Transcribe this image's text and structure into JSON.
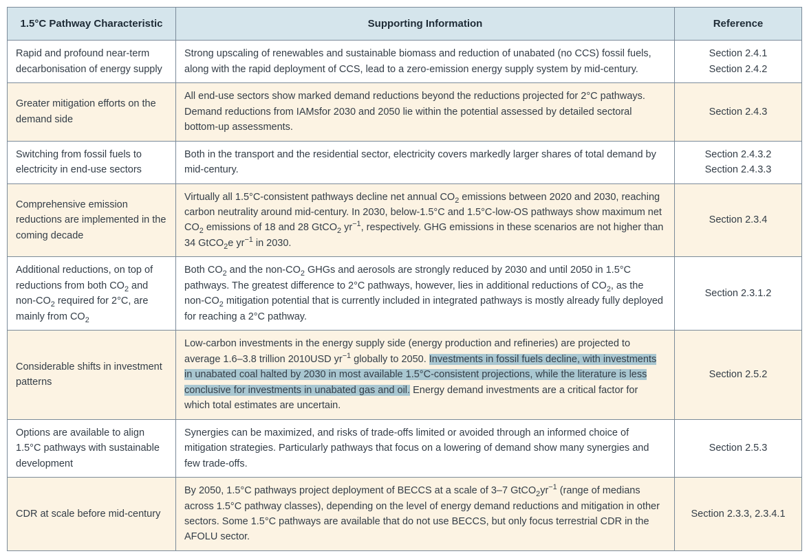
{
  "table": {
    "header_bg": "#d5e5ec",
    "alt_row_bg": "#fcf3e3",
    "border_color": "#7a8a99",
    "text_color": "#333d47",
    "highlight_bg": "#a9c7d1",
    "columns": {
      "characteristic": "1.5°C Pathway Characteristic",
      "supporting_info": "Supporting Information",
      "reference": "Reference"
    },
    "rows": [
      {
        "alt": false,
        "characteristic": "Rapid and profound near-term decarbonisation of energy supply",
        "info_html": "Strong upscaling of renewables and sustainable biomass and reduction of unabated (no CCS) fossil fuels, along with the rapid deployment of CCS, lead to a zero-emission energy supply system by mid-century.",
        "reference_html": "Section 2.4.1<br>Section 2.4.2"
      },
      {
        "alt": true,
        "characteristic": "Greater mitigation efforts on the demand side",
        "info_html": "All end-use sectors show marked demand reductions beyond the reductions projected for 2°C pathways. Demand reductions from IAMsfor 2030 and 2050 lie within the potential assessed by detailed sectoral bottom-up assessments.",
        "reference_html": "Section 2.4.3"
      },
      {
        "alt": false,
        "characteristic": "Switching from fossil fuels to electricity in end-use sectors",
        "info_html": "Both in the transport and the residential sector, electricity covers markedly larger shares of total demand by mid-century.",
        "reference_html": "Section 2.4.3.2<br>Section 2.4.3.3"
      },
      {
        "alt": true,
        "characteristic": "Comprehensive emission reductions are implemented in the coming decade",
        "info_html": "Virtually all 1.5°C-consistent pathways decline net annual CO<sub>2</sub> emissions between 2020 and 2030, reaching carbon neutrality around mid-century. In 2030, below-1.5°C and 1.5°C-low-OS pathways show maximum net CO<sub>2</sub> emissions of 18 and 28 GtCO<sub>2</sub> yr<sup>−1</sup>, respectively. GHG emissions in these scenarios are not higher than 34 GtCO<sub>2</sub>e yr<sup>−1</sup> in 2030.",
        "reference_html": "Section 2.3.4"
      },
      {
        "alt": false,
        "characteristic_html": "Additional reductions, on top of reductions from both CO<sub>2</sub> and non-CO<sub>2</sub> required for 2°C, are mainly from CO<sub>2</sub>",
        "info_html": "Both CO<sub>2</sub> and the non-CO<sub>2</sub> GHGs and aerosols are strongly reduced by 2030 and until 2050 in 1.5°C pathways. The greatest difference to 2°C pathways, however, lies in additional reductions of CO<sub>2</sub>, as the non-CO<sub>2</sub> mitigation potential that is currently included in integrated pathways is mostly already fully deployed for reaching a 2°C pathway.",
        "reference_html": "Section 2.3.1.2"
      },
      {
        "alt": true,
        "characteristic": "Considerable shifts in investment patterns",
        "info_html": "Low-carbon investments in the energy supply side (energy production and refineries) are projected to average 1.6–3.8 trillion 2010USD yr<sup>−1</sup> globally to 2050. <span class=\"highlight\">Investments in fossil fuels decline, with investments in unabated coal halted by 2030 in most available 1.5°C-consistent projections, while the literature is less conclusive for investments in unabated gas and oil.</span> Energy demand investments are a critical factor for which total estimates are uncertain.",
        "reference_html": "Section 2.5.2"
      },
      {
        "alt": false,
        "characteristic": "Options are available to align 1.5°C pathways with sustainable development",
        "info_html": "Synergies can be maximized, and risks of trade-offs limited or avoided through an informed choice of mitigation strategies. Particularly pathways that focus on a lowering of demand show many synergies and few trade-offs.",
        "reference_html": "Section 2.5.3"
      },
      {
        "alt": true,
        "characteristic": "CDR at scale before mid-century",
        "info_html": "By 2050, 1.5°C pathways project deployment of BECCS at a scale of 3–7 GtCO<sub>2</sub>yr<sup>−1</sup> (range of medians across 1.5°C pathway classes), depending on the level of energy demand reductions and mitigation in other sectors. Some 1.5°C pathways are available that do not use BECCS, but only focus terrestrial CDR in the AFOLU sector.",
        "reference_html": "Section 2.3.3, 2.3.4.1"
      }
    ]
  }
}
